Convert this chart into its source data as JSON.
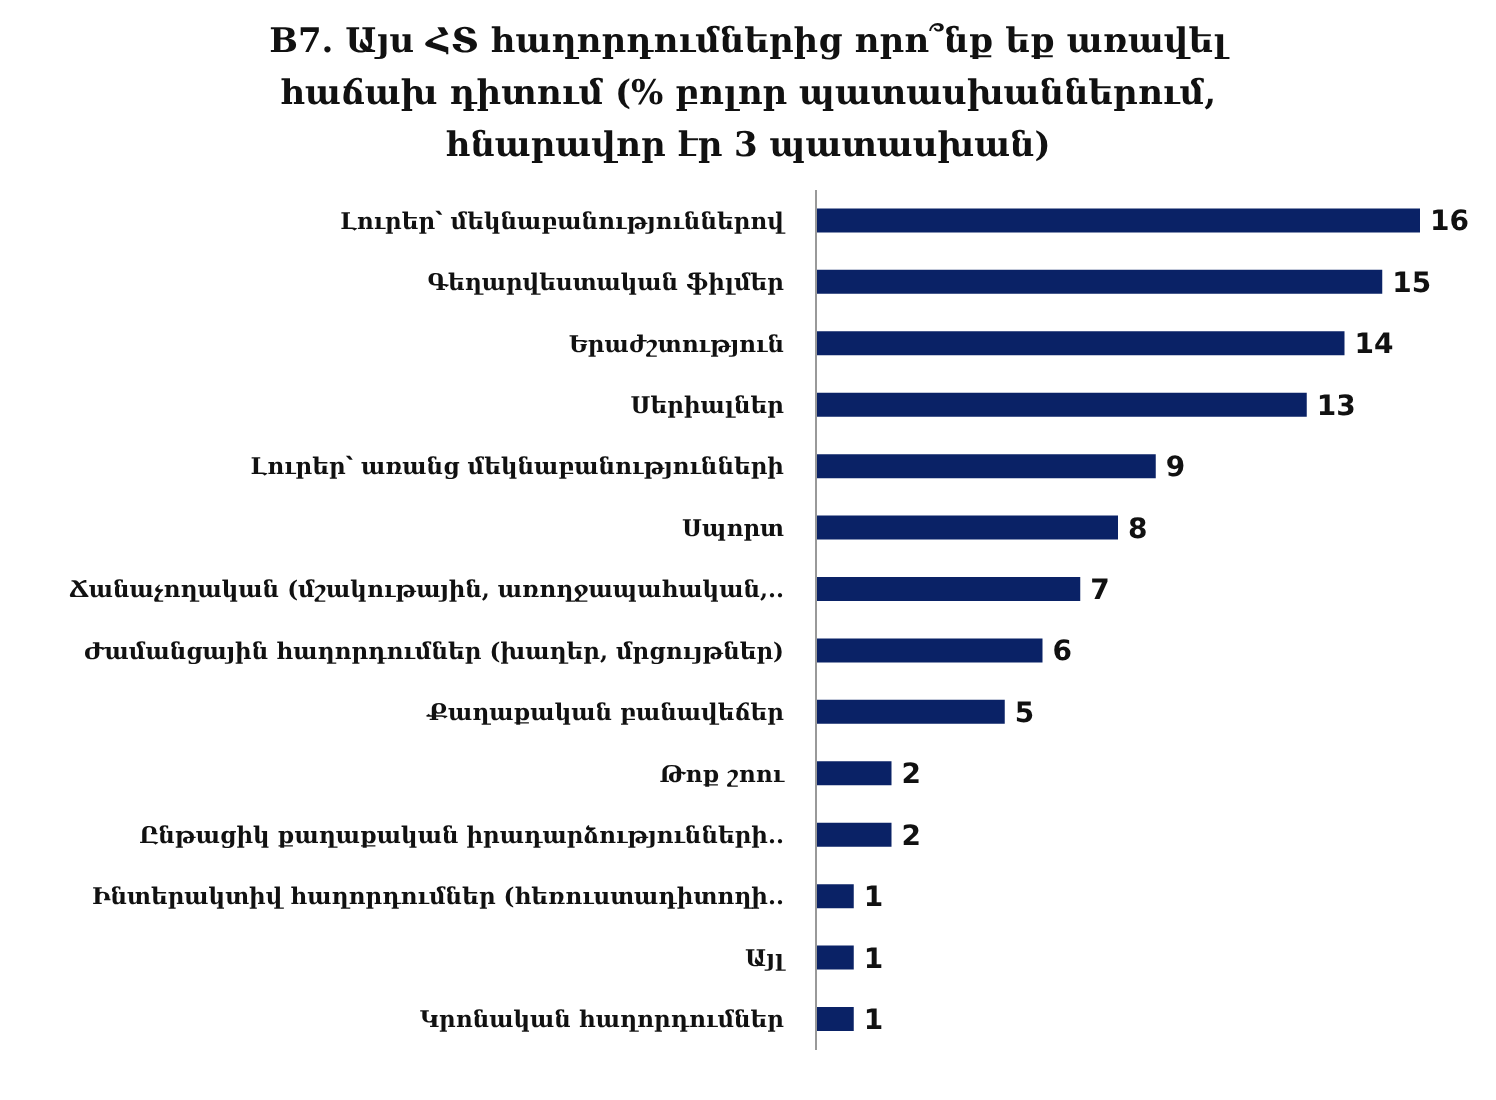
{
  "chart_data": {
    "type": "bar",
    "orientation": "horizontal",
    "title": "B7. Այս  ՀՏ հաղորդումներից որո՞նք եք  առավել հաճախ դիտում (% բոլոր պատասխաններում, հնարավոր էր 3 պատասխան)",
    "categories": [
      "Լուրեր՝ մեկնաբանություններով",
      "Գեղարվեստական ֆիլմեր",
      "Երաժշտություն",
      "Սերիալներ",
      "Լուրեր՝ առանց մեկնաբանությունների",
      "Սպորտ",
      "Ճանաչողական (մշակութային, առողջապահական,..",
      "Ժամանցային հաղորդումներ (խաղեր, մրցույթներ)",
      "Քաղաքական բանավեճեր",
      "Թոք շոու",
      "Ընթացիկ քաղաքական իրադարձությունների..",
      "Ինտերակտիվ հաղորդումներ (հեռուստադիտողի..",
      "Այլ",
      "Կրոնական հաղորդումներ"
    ],
    "values": [
      16,
      15,
      14,
      13,
      9,
      8,
      7,
      6,
      5,
      2,
      2,
      1,
      1,
      1
    ],
    "color": "#0a2266",
    "data_labels": true,
    "grid": false,
    "legend": false
  }
}
